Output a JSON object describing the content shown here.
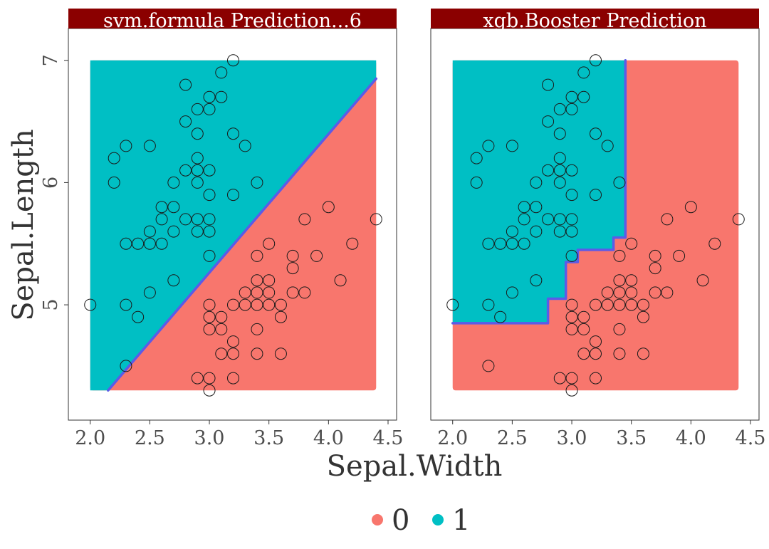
{
  "chart_data": {
    "type": "scatter",
    "xlabel": "Sepal.Width",
    "ylabel": "Sepal.Length",
    "xlim": [
      1.9,
      4.5
    ],
    "ylim": [
      4.15,
      7.15
    ],
    "x_ticks": [
      2.0,
      2.5,
      3.0,
      3.5,
      4.0,
      4.5
    ],
    "x_tick_labels": [
      "2.0",
      "2.5",
      "3.0",
      "3.5",
      "4.0",
      "4.5"
    ],
    "y_ticks": [
      5,
      6,
      7
    ],
    "y_tick_labels": [
      "5",
      "6",
      "7"
    ],
    "grid": false,
    "legend": {
      "position": "bottom",
      "entries": [
        {
          "label": "0",
          "color": "#F8766D"
        },
        {
          "label": "1",
          "color": "#00BFC4"
        }
      ]
    },
    "colors": {
      "class_0": "#F8766D",
      "class_1": "#00BFC4",
      "boundary": "#5B5BE8",
      "strip_background": "#8B0000",
      "strip_text": "#FFFFFF"
    },
    "grid_extent": {
      "x": [
        2.0,
        4.4
      ],
      "y": [
        4.3,
        7.0
      ]
    },
    "panels": [
      {
        "title": "svm.formula  Prediction...6",
        "boundary_type": "linear",
        "boundary": [
          [
            2.15,
            4.3
          ],
          [
            4.4,
            6.85
          ]
        ]
      },
      {
        "title": "xgb.Booster  Prediction",
        "boundary_type": "step",
        "boundary": [
          [
            2.0,
            4.85
          ],
          [
            2.8,
            4.85
          ],
          [
            2.8,
            5.05
          ],
          [
            2.95,
            5.05
          ],
          [
            2.95,
            5.35
          ],
          [
            3.05,
            5.35
          ],
          [
            3.05,
            5.45
          ],
          [
            3.35,
            5.45
          ],
          [
            3.35,
            5.55
          ],
          [
            3.45,
            5.55
          ],
          [
            3.45,
            7.0
          ]
        ]
      }
    ],
    "points": [
      [
        2.0,
        5.0
      ],
      [
        2.2,
        6.2
      ],
      [
        2.2,
        6.0
      ],
      [
        2.3,
        6.3
      ],
      [
        2.3,
        5.5
      ],
      [
        2.3,
        5.0
      ],
      [
        2.3,
        4.5
      ],
      [
        2.4,
        5.5
      ],
      [
        2.4,
        4.9
      ],
      [
        2.5,
        6.3
      ],
      [
        2.5,
        5.6
      ],
      [
        2.5,
        5.5
      ],
      [
        2.5,
        5.1
      ],
      [
        2.6,
        5.8
      ],
      [
        2.6,
        5.7
      ],
      [
        2.6,
        5.5
      ],
      [
        2.7,
        6.0
      ],
      [
        2.7,
        5.8
      ],
      [
        2.7,
        5.6
      ],
      [
        2.7,
        5.2
      ],
      [
        2.8,
        6.8
      ],
      [
        2.8,
        6.5
      ],
      [
        2.8,
        6.1
      ],
      [
        2.8,
        5.7
      ],
      [
        2.9,
        6.6
      ],
      [
        2.9,
        6.4
      ],
      [
        2.9,
        6.2
      ],
      [
        2.9,
        6.1
      ],
      [
        2.9,
        6.0
      ],
      [
        2.9,
        5.7
      ],
      [
        2.9,
        5.6
      ],
      [
        2.9,
        4.4
      ],
      [
        3.0,
        6.7
      ],
      [
        3.0,
        6.6
      ],
      [
        3.0,
        6.1
      ],
      [
        3.0,
        5.9
      ],
      [
        3.0,
        5.7
      ],
      [
        3.0,
        5.6
      ],
      [
        3.0,
        5.4
      ],
      [
        3.0,
        5.0
      ],
      [
        3.0,
        4.9
      ],
      [
        3.0,
        4.8
      ],
      [
        3.0,
        4.4
      ],
      [
        3.0,
        4.3
      ],
      [
        3.1,
        6.9
      ],
      [
        3.1,
        6.7
      ],
      [
        3.1,
        4.9
      ],
      [
        3.1,
        4.8
      ],
      [
        3.1,
        4.6
      ],
      [
        3.2,
        7.0
      ],
      [
        3.2,
        6.4
      ],
      [
        3.2,
        5.9
      ],
      [
        3.2,
        5.0
      ],
      [
        3.2,
        4.7
      ],
      [
        3.2,
        4.6
      ],
      [
        3.2,
        4.4
      ],
      [
        3.3,
        6.3
      ],
      [
        3.3,
        5.1
      ],
      [
        3.3,
        5.0
      ],
      [
        3.4,
        6.0
      ],
      [
        3.4,
        5.4
      ],
      [
        3.4,
        5.2
      ],
      [
        3.4,
        5.1
      ],
      [
        3.4,
        5.0
      ],
      [
        3.4,
        4.8
      ],
      [
        3.4,
        4.6
      ],
      [
        3.5,
        5.5
      ],
      [
        3.5,
        5.2
      ],
      [
        3.5,
        5.1
      ],
      [
        3.5,
        5.0
      ],
      [
        3.6,
        5.0
      ],
      [
        3.6,
        4.9
      ],
      [
        3.6,
        4.6
      ],
      [
        3.7,
        5.4
      ],
      [
        3.7,
        5.3
      ],
      [
        3.7,
        5.1
      ],
      [
        3.8,
        5.7
      ],
      [
        3.8,
        5.1
      ],
      [
        3.9,
        5.4
      ],
      [
        4.0,
        5.8
      ],
      [
        4.1,
        5.2
      ],
      [
        4.2,
        5.5
      ],
      [
        4.4,
        5.7
      ]
    ]
  }
}
